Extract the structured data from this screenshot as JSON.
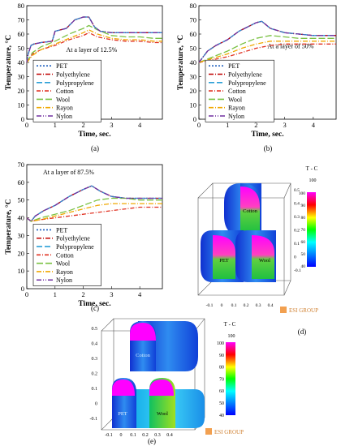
{
  "chart_data": [
    {
      "type": "line",
      "panel_label": "(a)",
      "annotation": "At a layer of 12.5%",
      "xlabel": "Time, sec.",
      "ylabel": "Temperature, °C",
      "xlim": [
        0,
        4.8
      ],
      "ylim": [
        0,
        80
      ],
      "xticks": [
        "0",
        "1",
        "2",
        "3",
        "4"
      ],
      "yticks": [
        "0",
        "10",
        "20",
        "30",
        "40",
        "50",
        "60",
        "70",
        "80"
      ],
      "legend": "bottom-left",
      "series": [
        {
          "name": "PET",
          "color": "#1f5fbf",
          "dash": "2,2",
          "x": [
            0,
            0.05,
            0.15,
            0.25,
            0.5,
            0.9,
            1.0,
            1.4,
            1.7,
            2.0,
            2.2,
            2.4,
            2.6,
            3.0,
            3.5,
            4.0,
            4.5,
            4.8
          ],
          "y": [
            40,
            46,
            52,
            53,
            54,
            55,
            62,
            64,
            70,
            72,
            72,
            65,
            62,
            61,
            61,
            61,
            61,
            61
          ]
        },
        {
          "name": "Polyethylene",
          "color": "#c00000",
          "dash": "6,2,1,2",
          "x": [
            0,
            0.05,
            0.15,
            0.25,
            0.5,
            0.9,
            1.0,
            1.4,
            1.7,
            2.0,
            2.2,
            2.4,
            2.6,
            3.0,
            3.5,
            4.0,
            4.5,
            4.8
          ],
          "y": [
            40,
            46,
            52,
            53,
            54,
            55,
            62,
            64,
            70,
            72,
            72,
            65,
            62,
            61,
            61,
            61,
            61,
            61
          ]
        },
        {
          "name": "Polypropylene",
          "color": "#2a9fd6",
          "dash": "7,3",
          "x": [
            0,
            0.05,
            0.15,
            0.25,
            0.5,
            0.9,
            1.0,
            1.4,
            1.7,
            2.0,
            2.2,
            2.4,
            2.6,
            3.0,
            3.5,
            4.0,
            4.5,
            4.8
          ],
          "y": [
            40,
            46,
            52,
            53,
            54,
            55,
            62,
            64,
            70,
            72,
            72,
            65,
            62,
            61,
            61,
            61,
            61,
            61
          ]
        },
        {
          "name": "Cotton",
          "color": "#e03020",
          "dash": "5,2,1,2",
          "x": [
            0,
            0.2,
            0.5,
            1.0,
            1.5,
            2.0,
            2.2,
            2.5,
            3.0,
            3.5,
            4.0,
            4.5,
            4.8
          ],
          "y": [
            40,
            46,
            49,
            52,
            56,
            59,
            61,
            58,
            56,
            55,
            55,
            54,
            54
          ]
        },
        {
          "name": "Wool",
          "color": "#7ac142",
          "dash": "8,3",
          "x": [
            0,
            0.2,
            0.5,
            1.0,
            1.5,
            2.0,
            2.2,
            2.5,
            3.0,
            3.5,
            4.0,
            4.5,
            4.8
          ],
          "y": [
            40,
            47,
            51,
            55,
            60,
            64,
            66,
            63,
            59,
            58,
            58,
            57,
            57
          ]
        },
        {
          "name": "Rayon",
          "color": "#f0a800",
          "dash": "6,2,1,2",
          "x": [
            0,
            0.2,
            0.5,
            1.0,
            1.5,
            2.0,
            2.2,
            2.5,
            3.0,
            3.5,
            4.0,
            4.5,
            4.8
          ],
          "y": [
            40,
            45,
            49,
            53,
            57,
            61,
            63,
            60,
            57,
            56,
            56,
            55,
            55
          ]
        },
        {
          "name": "Nylon",
          "color": "#7030a0",
          "dash": "6,2,1,2,1,2",
          "x": [
            0,
            0.05,
            0.15,
            0.25,
            0.5,
            0.9,
            1.0,
            1.4,
            1.7,
            2.0,
            2.2,
            2.4,
            2.6,
            3.0,
            3.5,
            4.0,
            4.5,
            4.8
          ],
          "y": [
            40,
            46,
            52,
            53,
            54,
            55,
            62,
            64,
            70,
            72,
            72,
            65,
            62,
            61,
            61,
            61,
            61,
            61
          ]
        }
      ]
    },
    {
      "type": "line",
      "panel_label": "(b)",
      "annotation": "At a layer of 50%",
      "xlabel": "Time, sec.",
      "ylabel": "Temperature, °C",
      "xlim": [
        0,
        4.8
      ],
      "ylim": [
        0,
        80
      ],
      "xticks": [
        "0",
        "1",
        "2",
        "3",
        "4"
      ],
      "yticks": [
        "0",
        "10",
        "20",
        "30",
        "40",
        "50",
        "60",
        "70",
        "80"
      ],
      "legend": "bottom-left",
      "series": [
        {
          "name": "PET",
          "color": "#1f5fbf",
          "dash": "2,2",
          "x": [
            0,
            0.3,
            0.6,
            1.0,
            1.4,
            1.8,
            2.0,
            2.2,
            2.5,
            3.0,
            3.5,
            4.0,
            4.5,
            4.8
          ],
          "y": [
            40,
            48,
            52,
            56,
            62,
            66,
            68,
            69,
            64,
            61,
            60,
            59,
            59,
            59
          ]
        },
        {
          "name": "Polyethylene",
          "color": "#c00000",
          "dash": "6,2,1,2",
          "x": [
            0,
            0.3,
            0.6,
            1.0,
            1.4,
            1.8,
            2.0,
            2.2,
            2.5,
            3.0,
            3.5,
            4.0,
            4.5,
            4.8
          ],
          "y": [
            40,
            48,
            52,
            56,
            62,
            66,
            68,
            69,
            64,
            61,
            60,
            59,
            59,
            59
          ]
        },
        {
          "name": "Polypropylene",
          "color": "#2a9fd6",
          "dash": "7,3",
          "x": [
            0,
            0.3,
            0.6,
            1.0,
            1.4,
            1.8,
            2.0,
            2.2,
            2.5,
            3.0,
            3.5,
            4.0,
            4.5,
            4.8
          ],
          "y": [
            40,
            48,
            52,
            56,
            62,
            66,
            68,
            69,
            64,
            61,
            60,
            59,
            59,
            59
          ]
        },
        {
          "name": "Cotton",
          "color": "#e03020",
          "dash": "5,2,1,2",
          "x": [
            0,
            0.5,
            1.0,
            1.5,
            2.0,
            2.5,
            3.0,
            3.5,
            4.0,
            4.5,
            4.8
          ],
          "y": [
            40,
            42,
            44,
            47,
            50,
            52,
            53,
            53,
            53,
            53,
            53
          ]
        },
        {
          "name": "Wool",
          "color": "#7ac142",
          "dash": "8,3",
          "x": [
            0,
            0.5,
            1.0,
            1.5,
            2.0,
            2.5,
            3.0,
            3.5,
            4.0,
            4.5,
            4.8
          ],
          "y": [
            40,
            44,
            48,
            53,
            57,
            59,
            58,
            57,
            57,
            57,
            57
          ]
        },
        {
          "name": "Rayon",
          "color": "#f0a800",
          "dash": "6,2,1,2",
          "x": [
            0,
            0.5,
            1.0,
            1.5,
            2.0,
            2.5,
            3.0,
            3.5,
            4.0,
            4.5,
            4.8
          ],
          "y": [
            40,
            43,
            46,
            50,
            53,
            55,
            55,
            55,
            55,
            55,
            55
          ]
        },
        {
          "name": "Nylon",
          "color": "#7030a0",
          "dash": "6,2,1,2,1,2",
          "x": [
            0,
            0.3,
            0.6,
            1.0,
            1.4,
            1.8,
            2.0,
            2.2,
            2.5,
            3.0,
            3.5,
            4.0,
            4.5,
            4.8
          ],
          "y": [
            40,
            48,
            52,
            56,
            62,
            66,
            68,
            69,
            64,
            61,
            60,
            59,
            59,
            59
          ]
        }
      ]
    },
    {
      "type": "line",
      "panel_label": "(c)",
      "annotation": "At a layer of 87.5%",
      "xlabel": "Time, sec.",
      "ylabel": "Temperature, °C",
      "xlim": [
        0,
        4.8
      ],
      "ylim": [
        0,
        70
      ],
      "xticks": [
        "0",
        "1",
        "2",
        "3",
        "4"
      ],
      "yticks": [
        "0",
        "10",
        "20",
        "30",
        "40",
        "50",
        "60",
        "70"
      ],
      "legend": "bottom-left",
      "series": [
        {
          "name": "PET",
          "color": "#1f5fbf",
          "dash": "2,2",
          "x": [
            0,
            0.15,
            0.3,
            0.6,
            1.0,
            1.5,
            2.0,
            2.3,
            2.6,
            3.0,
            3.5,
            4.0,
            4.5,
            4.8
          ],
          "y": [
            40,
            38,
            41,
            44,
            47,
            52,
            56,
            58,
            55,
            52,
            51,
            51,
            51,
            51
          ]
        },
        {
          "name": "Polyethylene",
          "color": "#c00000",
          "dash": "6,2,1,2",
          "x": [
            0,
            0.15,
            0.3,
            0.6,
            1.0,
            1.5,
            2.0,
            2.3,
            2.6,
            3.0,
            3.5,
            4.0,
            4.5,
            4.8
          ],
          "y": [
            40,
            38,
            41,
            44,
            47,
            52,
            56,
            58,
            55,
            52,
            51,
            51,
            51,
            51
          ]
        },
        {
          "name": "Polypropylene",
          "color": "#2a9fd6",
          "dash": "7,3",
          "x": [
            0,
            0.15,
            0.3,
            0.6,
            1.0,
            1.5,
            2.0,
            2.3,
            2.6,
            3.0,
            3.5,
            4.0,
            4.5,
            4.8
          ],
          "y": [
            40,
            38,
            41,
            44,
            47,
            52,
            56,
            58,
            55,
            52,
            51,
            51,
            51,
            51
          ]
        },
        {
          "name": "Cotton",
          "color": "#e03020",
          "dash": "5,2,1,2",
          "x": [
            0,
            0.15,
            0.5,
            1.0,
            1.5,
            2.0,
            2.5,
            3.0,
            3.5,
            4.0,
            4.5,
            4.8
          ],
          "y": [
            40,
            38,
            39,
            40,
            41,
            42,
            43,
            44,
            45,
            46,
            46,
            46
          ]
        },
        {
          "name": "Wool",
          "color": "#7ac142",
          "dash": "8,3",
          "x": [
            0,
            0.15,
            0.5,
            1.0,
            1.5,
            2.0,
            2.5,
            3.0,
            3.5,
            4.0,
            4.5,
            4.8
          ],
          "y": [
            40,
            38,
            40,
            42,
            44,
            47,
            50,
            51,
            51,
            50,
            50,
            50
          ]
        },
        {
          "name": "Rayon",
          "color": "#f0a800",
          "dash": "6,2,1,2",
          "x": [
            0,
            0.15,
            0.5,
            1.0,
            1.5,
            2.0,
            2.5,
            3.0,
            3.5,
            4.0,
            4.5,
            4.8
          ],
          "y": [
            40,
            38,
            39,
            41,
            43,
            45,
            47,
            48,
            48,
            48,
            48,
            48
          ]
        },
        {
          "name": "Nylon",
          "color": "#7030a0",
          "dash": "6,2,1,2,1,2",
          "x": [
            0,
            0.15,
            0.3,
            0.6,
            1.0,
            1.5,
            2.0,
            2.3,
            2.6,
            3.0,
            3.5,
            4.0,
            4.5,
            4.8
          ],
          "y": [
            40,
            38,
            41,
            44,
            47,
            52,
            56,
            58,
            55,
            52,
            51,
            51,
            51,
            51
          ]
        }
      ]
    }
  ],
  "render_d": {
    "panel_label": "(d)",
    "colorbar_title": "T - C",
    "colorbar_max": "100",
    "colorbar_ticks": [
      "100",
      "90",
      "80",
      "70",
      "60",
      "50",
      "40"
    ],
    "z_ticks": [
      "0.5",
      "0.4",
      "0.3",
      "0.2",
      "0.1",
      "0",
      "-0.1"
    ],
    "x_ticks": [
      "-0.1",
      "0",
      "0.1",
      "0.2",
      "0.3",
      "0.4"
    ],
    "labels": [
      "Cotton",
      "PET",
      "Wool"
    ],
    "logo": "ESI GROUP"
  },
  "render_e": {
    "panel_label": "(e)",
    "colorbar_title": "T - C",
    "colorbar_max": "100",
    "colorbar_ticks": [
      "100",
      "90",
      "80",
      "70",
      "60",
      "50",
      "40"
    ],
    "z_ticks": [
      "0.5",
      "0.4",
      "0.3",
      "0.2",
      "0.1",
      "0",
      "-0.1"
    ],
    "x_ticks": [
      "-0.1",
      "0",
      "0.1",
      "0.2",
      "0.3",
      "0.4"
    ],
    "labels": [
      "Cotton",
      "PET",
      "Wool"
    ],
    "logo": "ESI GROUP"
  }
}
